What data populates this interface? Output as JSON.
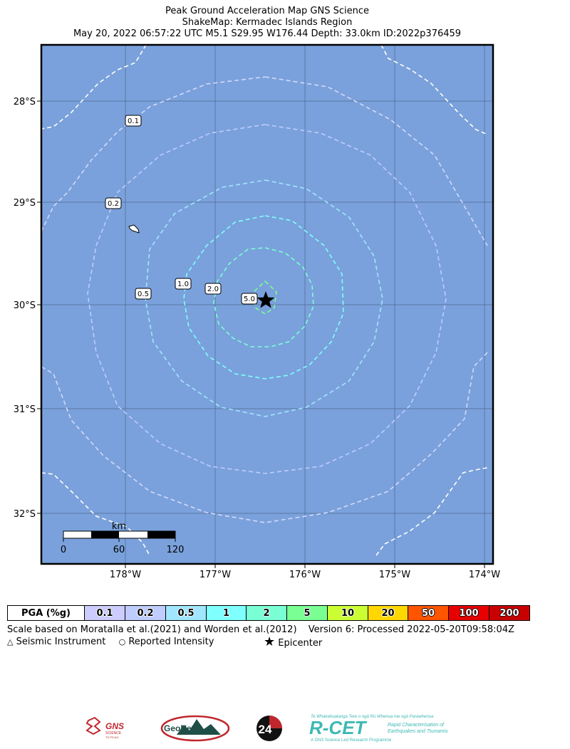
{
  "header": {
    "title_line1": "Peak Ground Acceleration Map GNS Science",
    "title_line2": "ShakeMap: Kermadec Islands Region",
    "title_line3": "May 20, 2022 06:57:22 UTC M5.1 S29.95 W176.44 Depth: 33.0km ID:2022p376459"
  },
  "map": {
    "lat_labels": [
      "28°S",
      "29°S",
      "30°S",
      "31°S",
      "32°S"
    ],
    "lon_labels": [
      "178°W",
      "177°W",
      "176°W",
      "175°W",
      "174°W"
    ],
    "contour_labels": [
      "0.1",
      "0.2",
      "0.5",
      "1.0",
      "2.0",
      "5.0"
    ],
    "scale_bar": {
      "unit": "km",
      "ticks": [
        "0",
        "60",
        "120"
      ]
    },
    "colors": {
      "ocean": "#7aa1db",
      "contour_0_1": "#ffffff",
      "contour_0_2": "#d2d9ff",
      "contour_0_5": "#bfccff",
      "contour_1_0": "#a0e6ff",
      "contour_2_0": "#80ffff",
      "contour_5_0": "#7aff93"
    }
  },
  "legend": {
    "label": "PGA (%g)",
    "cells": [
      {
        "value": "0.1",
        "color": "#ccccff"
      },
      {
        "value": "0.2",
        "color": "#bfccff"
      },
      {
        "value": "0.5",
        "color": "#a0e6ff"
      },
      {
        "value": "1",
        "color": "#80ffff"
      },
      {
        "value": "2",
        "color": "#7affd4"
      },
      {
        "value": "5",
        "color": "#7aff93"
      },
      {
        "value": "10",
        "color": "#ccff33"
      },
      {
        "value": "20",
        "color": "#ffd700"
      },
      {
        "value": "50",
        "color": "#ff5500"
      },
      {
        "value": "100",
        "color": "#e60000"
      },
      {
        "value": "200",
        "color": "#c80000"
      }
    ]
  },
  "footer": {
    "scale_note": "Scale based on Moratalla et al.(2021) and Worden et al.(2012)",
    "version_note": "Version 6: Processed 2022-05-20T09:58:04Z",
    "key_instrument": "Seismic Instrument",
    "key_intensity": "Reported Intensity",
    "key_epicenter": "Epicenter"
  },
  "logos": {
    "gns": "GNS",
    "gns_sub": "SCIENCE",
    "gns_sub2": "TE PŪ AO",
    "geonet": "GeoNet",
    "badge": "24",
    "rcet": "R-CET",
    "rcet_tag_top": "Te Whakahuatanga Tere o ngā Rū Whenua me ngā Parawhenua",
    "rcet_tag_1": "Rapid Characterisation of",
    "rcet_tag_2": "Earthquakes and Tsunamis",
    "rcet_tag_bottom": "A GNS Science Led Research Programme"
  }
}
